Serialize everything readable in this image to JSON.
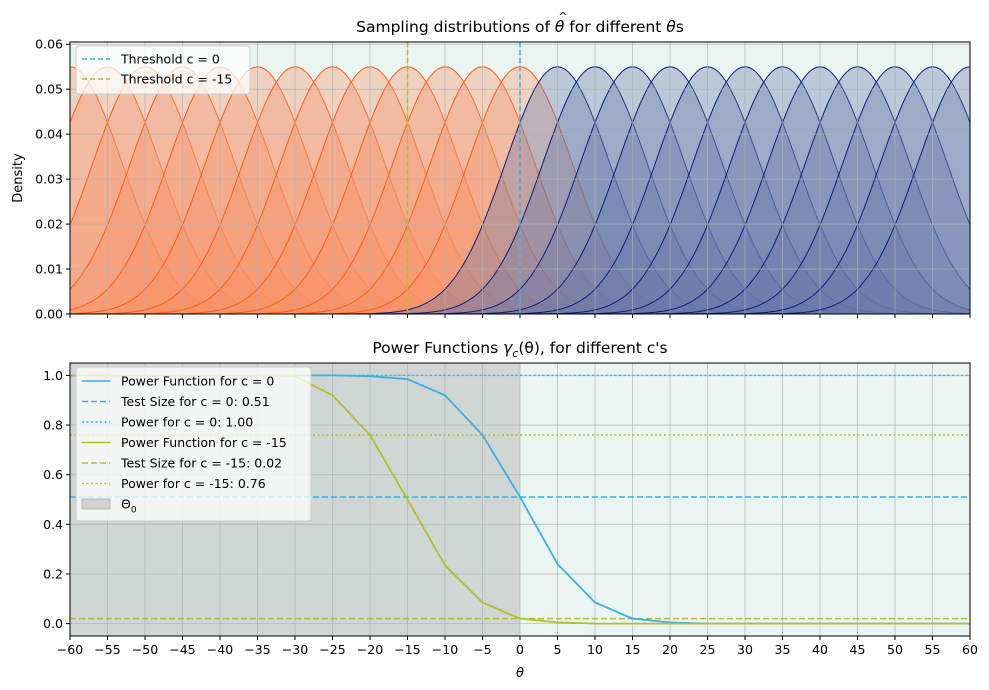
{
  "colors": {
    "theta0_fill": "#eaf4f1",
    "c0": "#3bb0e0",
    "c15": "#b5bd2a",
    "theta0_shade": "#a9a9a9",
    "orange_dark": "#ff5a10",
    "orange_light": "#f5a07f",
    "blue_dark": "#0a1e7c",
    "blue_light": "#8a9bbd"
  },
  "chart_data": [
    {
      "type": "area",
      "title": "Sampling distributions of θ̂ for different θs",
      "title_prefix": "Sampling distributions of ",
      "title_theta_hat": "θ",
      "title_hat": "^",
      "title_mid": " for different ",
      "title_theta": "θ",
      "title_suffix": "s",
      "ylabel": "Density",
      "xlim": [
        -60,
        60
      ],
      "ylim": [
        0,
        0.0605
      ],
      "x_ticks": [
        -60,
        -55,
        -50,
        -45,
        -40,
        -35,
        -30,
        -25,
        -20,
        -15,
        -10,
        -5,
        0,
        5,
        10,
        15,
        20,
        25,
        30,
        35,
        40,
        45,
        50,
        55,
        60
      ],
      "y_ticks": [
        0.0,
        0.01,
        0.02,
        0.03,
        0.04,
        0.05,
        0.06
      ],
      "y_tick_labels": [
        "0.00",
        "0.01",
        "0.02",
        "0.03",
        "0.04",
        "0.05",
        "0.06"
      ],
      "grid": true,
      "shaded_region_x": [
        -60,
        0
      ],
      "distribution_centers": [
        -60,
        -55,
        -50,
        -45,
        -40,
        -35,
        -30,
        -25,
        -20,
        -15,
        -10,
        -5,
        0,
        5,
        10,
        15,
        20,
        25,
        30,
        35,
        40,
        45,
        50,
        55,
        60
      ],
      "distribution_peak_density": 0.055,
      "distribution_sd": 7,
      "thresholds": [
        {
          "name": "Threshold c = 0",
          "x": 0,
          "style": "dashed",
          "color": "#3bb0e0"
        },
        {
          "name": "Threshold c = -15",
          "x": -15,
          "style": "dashed",
          "color": "#b5bd2a"
        }
      ],
      "legend_position": "upper-left"
    },
    {
      "type": "line",
      "title_prefix": "Power Functions ",
      "title_gamma": "γ",
      "title_sub": "c",
      "title_arg": "(θ)",
      "title_suffix": ", for different c's",
      "xlabel": "θ",
      "xlim": [
        -60,
        60
      ],
      "ylim": [
        -0.05,
        1.05
      ],
      "x_ticks": [
        -60,
        -55,
        -50,
        -45,
        -40,
        -35,
        -30,
        -25,
        -20,
        -15,
        -10,
        -5,
        0,
        5,
        10,
        15,
        20,
        25,
        30,
        35,
        40,
        45,
        50,
        55,
        60
      ],
      "y_ticks": [
        0.0,
        0.2,
        0.4,
        0.6,
        0.8,
        1.0
      ],
      "y_tick_labels": [
        "0.0",
        "0.2",
        "0.4",
        "0.6",
        "0.8",
        "1.0"
      ],
      "grid": true,
      "theta0_region_x": [
        -60,
        0
      ],
      "x": [
        -60,
        -55,
        -50,
        -45,
        -40,
        -35,
        -30,
        -25,
        -20,
        -15,
        -10,
        -5,
        0,
        5,
        10,
        15,
        20,
        25,
        30,
        35,
        40,
        45,
        50,
        55,
        60
      ],
      "series": [
        {
          "name": "Power Function for c = 0",
          "style": "solid",
          "color": "#3bb0e0",
          "values": [
            1.0,
            1.0,
            1.0,
            1.0,
            1.0,
            1.0,
            1.0,
            1.0,
            0.997,
            0.985,
            0.92,
            0.76,
            0.51,
            0.24,
            0.085,
            0.02,
            0.005,
            0.0,
            0.0,
            0.0,
            0.0,
            0.0,
            0.0,
            0.0,
            0.0
          ]
        },
        {
          "name": "Power Function for c = -15",
          "style": "solid",
          "color": "#b5bd2a",
          "values": [
            1.0,
            1.0,
            1.0,
            1.0,
            1.0,
            1.0,
            0.997,
            0.92,
            0.76,
            0.5,
            0.235,
            0.085,
            0.02,
            0.005,
            0.0,
            0.0,
            0.0,
            0.0,
            0.0,
            0.0,
            0.0,
            0.0,
            0.0,
            0.0,
            0.0
          ]
        }
      ],
      "reference_lines": [
        {
          "name": "Test Size for c = 0: 0.51",
          "y": 0.51,
          "style": "dashed",
          "color": "#3bb0e0"
        },
        {
          "name": "Power for c = 0: 1.00",
          "y": 1.0,
          "style": "dotted",
          "color": "#3bb0e0"
        },
        {
          "name": "Test Size for c = -15: 0.02",
          "y": 0.02,
          "style": "dashed",
          "color": "#b5bd2a"
        },
        {
          "name": "Power for c = -15: 0.76",
          "y": 0.76,
          "style": "dotted",
          "color": "#b5bd2a"
        }
      ],
      "legend_entries": [
        {
          "label": "Power Function for c = 0",
          "kind": "solid",
          "color": "#3bb0e0"
        },
        {
          "label": "Test Size for c = 0: 0.51",
          "kind": "dashed",
          "color": "#3bb0e0"
        },
        {
          "label": "Power for c = 0: 1.00",
          "kind": "dotted",
          "color": "#3bb0e0"
        },
        {
          "label": "Power Function for c = -15",
          "kind": "solid",
          "color": "#b5bd2a"
        },
        {
          "label": "Test Size for c = -15: 0.02",
          "kind": "dashed",
          "color": "#b5bd2a"
        },
        {
          "label": "Power for c = -15: 0.76",
          "kind": "dotted",
          "color": "#b5bd2a"
        },
        {
          "label": "Θ",
          "sub": "0",
          "kind": "patch",
          "color": "#a9a9a9"
        }
      ],
      "legend_position": "upper-left"
    }
  ]
}
